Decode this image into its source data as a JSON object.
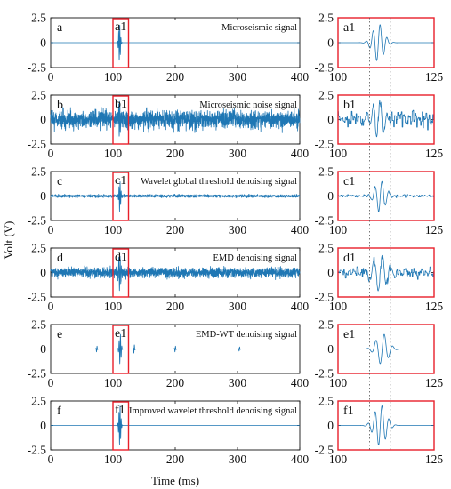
{
  "figure": {
    "ylabel": "Volt (V)",
    "xlabel": "Time (ms)",
    "colors": {
      "signal": "#1f77b4",
      "highlight": "#e8202a",
      "axis": "#111111",
      "guide": "#555555"
    }
  },
  "chart_data": [
    {
      "type": "line",
      "panel": "a",
      "letter": "a",
      "zoom_letter": "a1",
      "title": "Microseismic signal",
      "xlim": [
        0,
        400
      ],
      "ylim": [
        -2.5,
        2.5
      ],
      "xticks": [
        "0",
        "100",
        "200",
        "300",
        "400"
      ],
      "yticks": [
        "2.5",
        "0",
        "-2.5"
      ],
      "highlight_window": [
        100,
        125
      ],
      "zoom": {
        "xlim": [
          100,
          125
        ],
        "xticks": [
          "100",
          "125"
        ],
        "ylim": [
          -2.5,
          2.5
        ]
      },
      "noise_amplitude": 0.0,
      "events": [
        {
          "t": 110.5,
          "amp": 1.9,
          "width": 1.4,
          "freq": 0.55
        }
      ]
    },
    {
      "type": "line",
      "panel": "b",
      "letter": "b",
      "zoom_letter": "b1",
      "title": "Microseismic noise signal",
      "xlim": [
        0,
        400
      ],
      "ylim": [
        -2.5,
        2.5
      ],
      "xticks": [
        "0",
        "100",
        "200",
        "300",
        "400"
      ],
      "yticks": [
        "2.5",
        "0",
        "-2.5"
      ],
      "highlight_window": [
        100,
        125
      ],
      "zoom": {
        "xlim": [
          100,
          125
        ],
        "xticks": [
          "100",
          "125"
        ],
        "ylim": [
          -2.5,
          2.5
        ]
      },
      "noise_amplitude": 0.65,
      "events": [
        {
          "t": 110.5,
          "amp": 2.0,
          "width": 1.4,
          "freq": 0.55
        }
      ]
    },
    {
      "type": "line",
      "panel": "c",
      "letter": "c",
      "zoom_letter": "c1",
      "title": "Wavelet global threshold denoising signal",
      "xlim": [
        0,
        400
      ],
      "ylim": [
        -2.5,
        2.5
      ],
      "xticks": [
        "0",
        "100",
        "200",
        "300",
        "400"
      ],
      "yticks": [
        "2.5",
        "0",
        "-2.5"
      ],
      "highlight_window": [
        100,
        125
      ],
      "zoom": {
        "xlim": [
          100,
          125
        ],
        "xticks": [
          "100",
          "125"
        ],
        "ylim": [
          -2.5,
          2.5
        ]
      },
      "noise_amplitude": 0.1,
      "events": [
        {
          "t": 111.0,
          "amp": 1.6,
          "width": 1.3,
          "freq": 0.55
        }
      ]
    },
    {
      "type": "line",
      "panel": "d",
      "letter": "d",
      "zoom_letter": "d1",
      "title": "EMD denoising signal",
      "xlim": [
        0,
        400
      ],
      "ylim": [
        -2.5,
        2.5
      ],
      "xticks": [
        "0",
        "100",
        "200",
        "300",
        "400"
      ],
      "yticks": [
        "2.5",
        "0",
        "-2.5"
      ],
      "highlight_window": [
        100,
        125
      ],
      "zoom": {
        "xlim": [
          100,
          125
        ],
        "xticks": [
          "100",
          "125"
        ],
        "ylim": [
          -2.5,
          2.5
        ]
      },
      "noise_amplitude": 0.35,
      "events": [
        {
          "t": 111.0,
          "amp": 1.7,
          "width": 2.0,
          "freq": 0.45
        }
      ]
    },
    {
      "type": "line",
      "panel": "e",
      "letter": "e",
      "zoom_letter": "e1",
      "title": "EMD-WT denoising signal",
      "xlim": [
        0,
        400
      ],
      "ylim": [
        -2.5,
        2.5
      ],
      "xticks": [
        "0",
        "100",
        "200",
        "300",
        "400"
      ],
      "yticks": [
        "2.5",
        "0",
        "-2.5"
      ],
      "highlight_window": [
        100,
        125
      ],
      "zoom": {
        "xlim": [
          100,
          125
        ],
        "xticks": [
          "100",
          "125"
        ],
        "ylim": [
          -2.5,
          2.5
        ]
      },
      "noise_amplitude": 0.0,
      "events": [
        {
          "t": 111.5,
          "amp": 1.6,
          "width": 1.5,
          "freq": 0.45
        },
        {
          "t": 74,
          "amp": 0.35,
          "width": 0.8,
          "freq": 0.5
        },
        {
          "t": 134,
          "amp": 0.5,
          "width": 0.8,
          "freq": 0.5
        },
        {
          "t": 200,
          "amp": 0.35,
          "width": 0.8,
          "freq": 0.5
        },
        {
          "t": 303,
          "amp": 0.25,
          "width": 0.8,
          "freq": 0.5
        }
      ]
    },
    {
      "type": "line",
      "panel": "f",
      "letter": "f",
      "zoom_letter": "f1",
      "title": "Improved wavelet threshold denoising signal",
      "xlim": [
        0,
        400
      ],
      "ylim": [
        -2.5,
        2.5
      ],
      "xticks": [
        "0",
        "100",
        "200",
        "300",
        "400"
      ],
      "yticks": [
        "2.5",
        "0",
        "-2.5"
      ],
      "highlight_window": [
        100,
        125
      ],
      "zoom": {
        "xlim": [
          100,
          125
        ],
        "xticks": [
          "100",
          "125"
        ],
        "ylim": [
          -2.5,
          2.5
        ]
      },
      "noise_amplitude": 0.0,
      "events": [
        {
          "t": 111.0,
          "amp": 2.1,
          "width": 1.5,
          "freq": 0.55
        }
      ]
    }
  ]
}
